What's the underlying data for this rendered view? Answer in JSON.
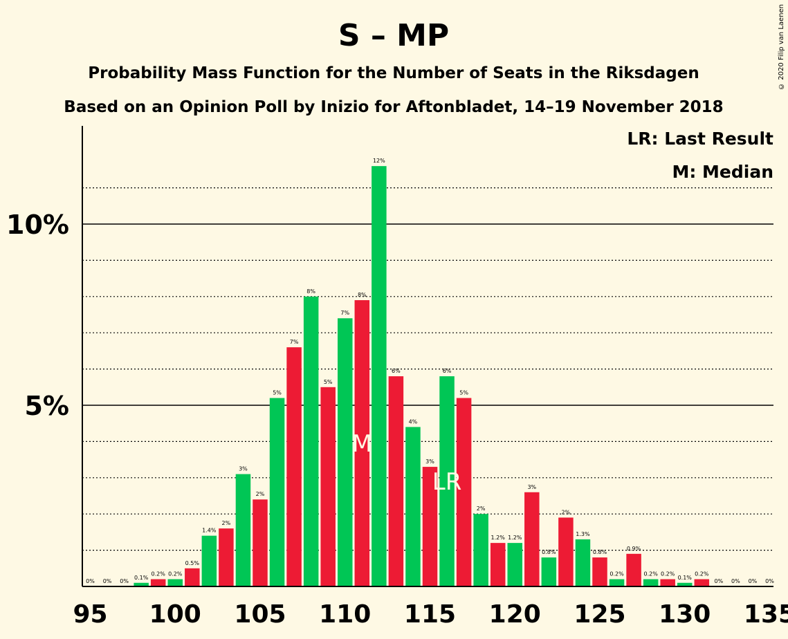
{
  "chart_data": {
    "type": "bar",
    "title": "S – MP",
    "subtitle": "Probability Mass Function for the Number of Seats in the Riksdagen",
    "subtitle2": "Based on an Opinion Poll by Inizio for Aftonbladet, 14–19 November 2018",
    "copyright": "© 2020 Filip van Laenen",
    "legend": {
      "lr": "LR: Last Result",
      "m": "M: Median",
      "placement": "top-right"
    },
    "xlabel": "",
    "ylabel": "",
    "xlim": [
      95,
      135
    ],
    "ylim": [
      0,
      12.6
    ],
    "x_ticks": [
      "95",
      "100",
      "105",
      "110",
      "115",
      "120",
      "125",
      "130",
      "135"
    ],
    "y_ticks": [
      {
        "value": 5,
        "label": "5%"
      },
      {
        "value": 10,
        "label": "10%"
      }
    ],
    "grid": "dotted every 1%, solid at 5% and 10%",
    "median_seat": 111,
    "median_marker": "M",
    "last_result_seat": 116,
    "last_result_marker": "LR",
    "colors": {
      "odd_bar": "#ed1b34",
      "even_bar": "#00c655",
      "background": "#fef9e4",
      "axis": "#000000"
    },
    "seats": [
      95,
      96,
      97,
      98,
      99,
      100,
      101,
      102,
      103,
      104,
      105,
      106,
      107,
      108,
      109,
      110,
      111,
      112,
      113,
      114,
      115,
      116,
      117,
      118,
      119,
      120,
      121,
      122,
      123,
      124,
      125,
      126,
      127,
      128,
      129,
      130,
      131,
      132,
      133,
      134,
      135
    ],
    "values": [
      0,
      0,
      0,
      0.1,
      0.2,
      0.2,
      0.5,
      1.4,
      1.6,
      3.1,
      2.4,
      5.2,
      6.6,
      8.0,
      5.5,
      7.4,
      7.9,
      11.6,
      5.8,
      4.4,
      3.3,
      5.8,
      5.2,
      2.0,
      1.2,
      1.2,
      2.6,
      0.8,
      1.9,
      1.3,
      0.8,
      0.2,
      0.9,
      0.2,
      0.2,
      0.1,
      0.2,
      0,
      0,
      0,
      0
    ],
    "labels": [
      "0%",
      "0%",
      "0%",
      "0.1%",
      "0.2%",
      "0.2%",
      "0.5%",
      "1.4%",
      "2%",
      "3%",
      "2%",
      "5%",
      "7%",
      "8%",
      "5%",
      "7%",
      "8%",
      "12%",
      "6%",
      "4%",
      "3%",
      "6%",
      "5%",
      "2%",
      "1.2%",
      "1.2%",
      "3%",
      "0.8%",
      "2%",
      "1.3%",
      "0.8%",
      "0.2%",
      "0.9%",
      "0.2%",
      "0.2%",
      "0.1%",
      "0.2%",
      "0%",
      "0%",
      "0%",
      "0%"
    ]
  }
}
